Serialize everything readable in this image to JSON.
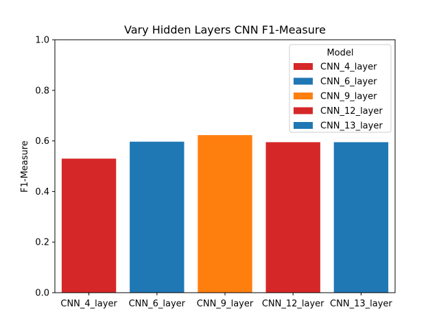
{
  "chart_data": {
    "type": "bar",
    "title": "Vary Hidden Layers CNN F1-Measure",
    "xlabel": "",
    "ylabel": "F1-Measure",
    "ylim": [
      0,
      1.0
    ],
    "yticks": [
      "0.0",
      "0.2",
      "0.4",
      "0.6",
      "0.8",
      "1.0"
    ],
    "categories": [
      "CNN_4_layer",
      "CNN_6_layer",
      "CNN_9_layer",
      "CNN_12_layer",
      "CNN_13_layer"
    ],
    "values": [
      0.53,
      0.597,
      0.623,
      0.595,
      0.595
    ],
    "colors": [
      "#d62728",
      "#1f77b4",
      "#ff7f0e",
      "#d62728",
      "#1f77b4"
    ],
    "grid": false,
    "legend": {
      "title": "Model",
      "placement": "top-right",
      "entries": [
        "CNN_4_layer",
        "CNN_6_layer",
        "CNN_9_layer",
        "CNN_12_layer",
        "CNN_13_layer"
      ]
    }
  }
}
